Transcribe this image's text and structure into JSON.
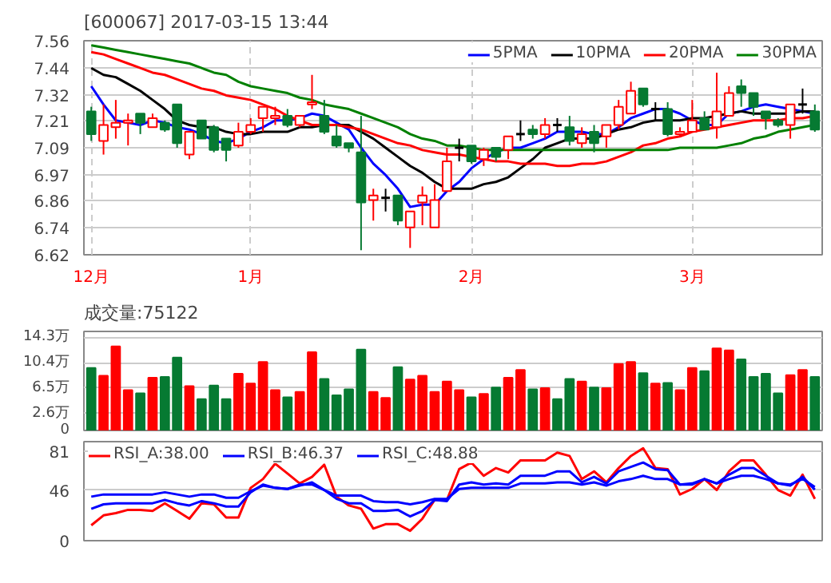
{
  "chart_data": [
    {
      "type": "candlestick",
      "title": "[600067] 2017-03-15 13:44",
      "categories": [
        "12月",
        null,
        null,
        null,
        null,
        null,
        null,
        null,
        null,
        null,
        null,
        null,
        null,
        "1月",
        null,
        null,
        null,
        null,
        null,
        null,
        null,
        null,
        null,
        null,
        null,
        null,
        null,
        null,
        null,
        null,
        null,
        "2月",
        null,
        null,
        null,
        null,
        null,
        null,
        null,
        null,
        null,
        null,
        null,
        null,
        null,
        null,
        null,
        null,
        null,
        "3月",
        null,
        null,
        null,
        null,
        null,
        null,
        null,
        null,
        null,
        null
      ],
      "ohlc": [
        [
          7.25,
          7.27,
          7.12,
          7.15
        ],
        [
          7.12,
          7.28,
          7.06,
          7.19
        ],
        [
          7.18,
          7.3,
          7.13,
          7.2
        ],
        [
          7.2,
          7.24,
          7.1,
          7.21
        ],
        [
          7.24,
          7.24,
          7.15,
          7.2
        ],
        [
          7.18,
          7.24,
          7.18,
          7.22
        ],
        [
          7.2,
          7.21,
          7.16,
          7.17
        ],
        [
          7.28,
          7.28,
          7.09,
          7.11
        ],
        [
          7.06,
          7.16,
          7.04,
          7.16
        ],
        [
          7.21,
          7.21,
          7.13,
          7.13
        ],
        [
          7.18,
          7.19,
          7.07,
          7.08
        ],
        [
          7.13,
          7.13,
          7.03,
          7.08
        ],
        [
          7.1,
          7.2,
          7.09,
          7.16
        ],
        [
          7.16,
          7.22,
          7.15,
          7.19
        ],
        [
          7.22,
          7.27,
          7.16,
          7.27
        ],
        [
          7.22,
          7.27,
          7.19,
          7.23
        ],
        [
          7.23,
          7.26,
          7.18,
          7.19
        ],
        [
          7.19,
          7.23,
          7.18,
          7.23
        ],
        [
          7.28,
          7.41,
          7.26,
          7.29
        ],
        [
          7.23,
          7.3,
          7.15,
          7.16
        ],
        [
          7.14,
          7.19,
          7.09,
          7.1
        ],
        [
          7.11,
          7.11,
          7.07,
          7.09
        ],
        [
          7.07,
          7.23,
          6.64,
          6.85
        ],
        [
          6.86,
          6.91,
          6.77,
          6.88
        ],
        [
          6.87,
          6.91,
          6.81,
          6.87
        ],
        [
          6.88,
          6.88,
          6.75,
          6.77
        ],
        [
          6.74,
          6.81,
          6.65,
          6.81
        ],
        [
          6.85,
          6.92,
          6.75,
          6.88
        ],
        [
          6.74,
          6.93,
          6.74,
          6.86
        ],
        [
          6.9,
          7.09,
          6.9,
          7.03
        ],
        [
          7.09,
          7.13,
          7.03,
          7.09
        ],
        [
          7.1,
          7.1,
          7.02,
          7.03
        ],
        [
          7.04,
          7.09,
          7.01,
          7.08
        ],
        [
          7.09,
          7.09,
          7.03,
          7.05
        ],
        [
          7.08,
          7.14,
          7.04,
          7.14
        ],
        [
          7.15,
          7.21,
          7.12,
          7.15
        ],
        [
          7.17,
          7.19,
          7.13,
          7.15
        ],
        [
          7.15,
          7.22,
          7.13,
          7.19
        ],
        [
          7.19,
          7.22,
          7.16,
          7.19
        ],
        [
          7.18,
          7.23,
          7.1,
          7.12
        ],
        [
          7.11,
          7.18,
          7.09,
          7.15
        ],
        [
          7.16,
          7.19,
          7.07,
          7.11
        ],
        [
          7.14,
          7.19,
          7.09,
          7.19
        ],
        [
          7.19,
          7.3,
          7.17,
          7.27
        ],
        [
          7.24,
          7.38,
          7.24,
          7.34
        ],
        [
          7.35,
          7.35,
          7.27,
          7.28
        ],
        [
          7.26,
          7.29,
          7.21,
          7.26
        ],
        [
          7.26,
          7.29,
          7.14,
          7.15
        ],
        [
          7.15,
          7.18,
          7.14,
          7.16
        ],
        [
          7.16,
          7.3,
          7.16,
          7.21
        ],
        [
          7.22,
          7.25,
          7.17,
          7.17
        ],
        [
          7.18,
          7.42,
          7.13,
          7.25
        ],
        [
          7.23,
          7.36,
          7.23,
          7.33
        ],
        [
          7.36,
          7.39,
          7.27,
          7.33
        ],
        [
          7.33,
          7.33,
          7.23,
          7.27
        ],
        [
          7.25,
          7.25,
          7.17,
          7.22
        ],
        [
          7.21,
          7.22,
          7.18,
          7.19
        ],
        [
          7.19,
          7.28,
          7.13,
          7.28
        ],
        [
          7.28,
          7.35,
          7.24,
          7.28
        ],
        [
          7.25,
          7.28,
          7.16,
          7.17
        ]
      ],
      "colors": [
        "#067a32",
        "#ff0000",
        "#ff0000",
        "#ff0000",
        "#067a32",
        "#ff0000",
        "#067a32",
        "#067a32",
        "#ff0000",
        "#067a32",
        "#067a32",
        "#067a32",
        "#ff0000",
        "#ff0000",
        "#ff0000",
        "#ff0000",
        "#067a32",
        "#ff0000",
        "#ff0000",
        "#067a32",
        "#067a32",
        "#067a32",
        "#067a32",
        "#ff0000",
        "#000000",
        "#067a32",
        "#ff0000",
        "#ff0000",
        "#ff0000",
        "#ff0000",
        "#000000",
        "#067a32",
        "#ff0000",
        "#067a32",
        "#ff0000",
        "#000000",
        "#067a32",
        "#ff0000",
        "#000000",
        "#067a32",
        "#ff0000",
        "#067a32",
        "#ff0000",
        "#ff0000",
        "#ff0000",
        "#067a32",
        "#000000",
        "#067a32",
        "#ff0000",
        "#ff0000",
        "#067a32",
        "#ff0000",
        "#ff0000",
        "#067a32",
        "#067a32",
        "#067a32",
        "#067a32",
        "#ff0000",
        "#000000",
        "#067a32"
      ],
      "series": [
        {
          "name": "5PMA",
          "type": "line",
          "color": "#0000ff",
          "values": [
            7.36,
            7.28,
            7.21,
            7.2,
            7.19,
            7.21,
            7.2,
            7.18,
            7.17,
            7.15,
            7.12,
            7.11,
            7.13,
            7.16,
            7.18,
            7.21,
            7.21,
            7.22,
            7.24,
            7.23,
            7.2,
            7.17,
            7.09,
            7.02,
            6.97,
            6.91,
            6.83,
            6.84,
            6.84,
            6.9,
            6.94,
            7.0,
            7.04,
            7.07,
            7.09,
            7.09,
            7.11,
            7.13,
            7.16,
            7.16,
            7.16,
            7.15,
            7.15,
            7.18,
            7.22,
            7.24,
            7.26,
            7.26,
            7.24,
            7.21,
            7.19,
            7.19,
            7.24,
            7.25,
            7.27,
            7.28,
            7.27,
            7.26,
            7.25,
            7.24
          ]
        },
        {
          "name": "10PMA",
          "type": "line",
          "color": "#000000",
          "values": [
            7.44,
            7.41,
            7.4,
            7.37,
            7.34,
            7.3,
            7.26,
            7.21,
            7.19,
            7.18,
            7.18,
            7.16,
            7.15,
            7.15,
            7.16,
            7.16,
            7.16,
            7.18,
            7.18,
            7.19,
            7.19,
            7.19,
            7.16,
            7.13,
            7.09,
            7.05,
            7.01,
            6.98,
            6.94,
            6.91,
            6.91,
            6.91,
            6.93,
            6.94,
            6.96,
            7.0,
            7.04,
            7.09,
            7.11,
            7.13,
            7.13,
            7.13,
            7.15,
            7.17,
            7.18,
            7.2,
            7.21,
            7.21,
            7.21,
            7.22,
            7.22,
            7.23,
            7.24,
            7.25,
            7.24,
            7.24,
            7.24,
            7.24,
            7.25,
            7.25
          ]
        },
        {
          "name": "20PMA",
          "type": "line",
          "color": "#ff0000",
          "values": [
            7.51,
            7.5,
            7.48,
            7.46,
            7.44,
            7.42,
            7.41,
            7.39,
            7.37,
            7.35,
            7.34,
            7.32,
            7.31,
            7.3,
            7.28,
            7.26,
            7.23,
            7.21,
            7.19,
            7.19,
            7.19,
            7.18,
            7.17,
            7.15,
            7.13,
            7.11,
            7.1,
            7.08,
            7.07,
            7.06,
            7.06,
            7.05,
            7.04,
            7.03,
            7.03,
            7.02,
            7.02,
            7.02,
            7.01,
            7.01,
            7.02,
            7.02,
            7.03,
            7.05,
            7.07,
            7.1,
            7.11,
            7.13,
            7.14,
            7.16,
            7.17,
            7.18,
            7.19,
            7.2,
            7.21,
            7.21,
            7.21,
            7.22,
            7.22,
            7.23
          ]
        },
        {
          "name": "30PMA",
          "type": "line",
          "color": "#008000",
          "values": [
            7.54,
            7.53,
            7.52,
            7.51,
            7.5,
            7.49,
            7.48,
            7.47,
            7.46,
            7.44,
            7.42,
            7.41,
            7.38,
            7.36,
            7.35,
            7.34,
            7.33,
            7.31,
            7.3,
            7.28,
            7.27,
            7.26,
            7.24,
            7.22,
            7.2,
            7.18,
            7.15,
            7.13,
            7.12,
            7.1,
            7.1,
            7.09,
            7.08,
            7.08,
            7.08,
            7.08,
            7.08,
            7.08,
            7.08,
            7.08,
            7.08,
            7.08,
            7.08,
            7.08,
            7.08,
            7.08,
            7.08,
            7.08,
            7.09,
            7.09,
            7.09,
            7.09,
            7.1,
            7.11,
            7.13,
            7.14,
            7.16,
            7.17,
            7.18,
            7.19
          ]
        }
      ],
      "ylim": [
        6.62,
        7.56
      ],
      "yticks": [
        6.62,
        6.74,
        6.86,
        6.97,
        7.09,
        7.21,
        7.32,
        7.44,
        7.56
      ],
      "grid": true,
      "legend": "top right"
    },
    {
      "type": "bar",
      "title": "成交量:75122",
      "categories": [
        null,
        null,
        null,
        null,
        null,
        null,
        null,
        null,
        null,
        null,
        null,
        null,
        null,
        null,
        null,
        null,
        null,
        null,
        null,
        null,
        null,
        null,
        null,
        null,
        null,
        null,
        null,
        null,
        null,
        null,
        null,
        null,
        null,
        null,
        null,
        null,
        null,
        null,
        null,
        null,
        null,
        null,
        null,
        null,
        null,
        null,
        null,
        null,
        null,
        null,
        null,
        null,
        null,
        null,
        null,
        null,
        null,
        null,
        null,
        null
      ],
      "values": [
        9.6,
        8.4,
        12.9,
        6.2,
        5.7,
        8.1,
        8.2,
        11.2,
        6.8,
        4.8,
        6.9,
        4.8,
        8.7,
        7.2,
        10.5,
        6.2,
        5.1,
        5.9,
        12.0,
        7.9,
        5.4,
        6.3,
        12.4,
        5.9,
        5.0,
        9.7,
        7.8,
        8.4,
        5.9,
        7.5,
        6.2,
        5.1,
        5.6,
        6.6,
        8.1,
        9.3,
        6.3,
        6.5,
        4.8,
        7.9,
        7.5,
        6.6,
        6.5,
        10.2,
        10.5,
        8.8,
        7.2,
        7.3,
        6.2,
        9.6,
        9.1,
        12.6,
        12.3,
        10.9,
        8.2,
        8.7,
        5.7,
        8.5,
        9.3,
        8.2
      ],
      "colors": [
        "#067a32",
        "#ff0000",
        "#ff0000",
        "#ff0000",
        "#067a32",
        "#ff0000",
        "#067a32",
        "#067a32",
        "#ff0000",
        "#067a32",
        "#067a32",
        "#067a32",
        "#ff0000",
        "#ff0000",
        "#ff0000",
        "#ff0000",
        "#067a32",
        "#ff0000",
        "#ff0000",
        "#067a32",
        "#067a32",
        "#067a32",
        "#067a32",
        "#ff0000",
        "#ff0000",
        "#067a32",
        "#ff0000",
        "#ff0000",
        "#ff0000",
        "#ff0000",
        "#ff0000",
        "#067a32",
        "#ff0000",
        "#067a32",
        "#ff0000",
        "#ff0000",
        "#067a32",
        "#ff0000",
        "#067a32",
        "#067a32",
        "#ff0000",
        "#067a32",
        "#ff0000",
        "#ff0000",
        "#ff0000",
        "#067a32",
        "#ff0000",
        "#067a32",
        "#ff0000",
        "#ff0000",
        "#067a32",
        "#ff0000",
        "#ff0000",
        "#067a32",
        "#067a32",
        "#067a32",
        "#067a32",
        "#ff0000",
        "#ff0000",
        "#067a32"
      ],
      "ylim": [
        0,
        15.2
      ],
      "yticks": [
        0,
        {
          "value": 2.6,
          "label": "2.6万"
        },
        {
          "value": 6.5,
          "label": "6.5万"
        },
        {
          "value": 10.4,
          "label": "10.4万"
        },
        {
          "value": 14.3,
          "label": "14.3万"
        }
      ],
      "grid": "y",
      "tick_labels": "y"
    },
    {
      "type": "line",
      "categories": [
        null,
        null,
        null,
        null,
        null,
        null,
        null,
        null,
        null,
        null,
        null,
        null,
        null,
        null,
        null,
        null,
        null,
        null,
        null,
        null,
        null,
        null,
        null,
        null,
        null,
        null,
        null,
        null,
        null,
        null,
        null,
        null,
        null,
        null,
        null,
        null,
        null,
        null,
        null,
        null,
        null,
        null,
        null,
        null,
        null,
        null,
        null,
        null,
        null,
        null,
        null,
        null,
        null,
        null,
        null,
        null,
        null,
        null,
        null,
        null
      ],
      "series": [
        {
          "name": "RSI_A:38.00",
          "color": "#ff0000",
          "values": [
            14,
            23,
            25,
            28,
            28,
            27,
            34,
            27,
            20,
            34,
            33,
            21,
            21,
            48,
            56,
            70,
            61,
            52,
            58,
            69,
            40,
            32,
            29,
            11,
            15,
            15,
            9,
            20,
            37,
            37,
            65,
            71,
            59,
            66,
            62,
            73,
            73,
            73,
            80,
            77,
            56,
            63,
            53,
            66,
            77,
            84,
            66,
            65,
            42,
            47,
            56,
            46,
            63,
            73,
            73,
            60,
            46,
            41,
            60,
            38
          ]
        },
        {
          "name": "RSI_B:46.37",
          "color": "#0000ff",
          "values": [
            29,
            33,
            34,
            34,
            34,
            34,
            37,
            34,
            32,
            36,
            34,
            31,
            31,
            44,
            51,
            48,
            47,
            50,
            53,
            46,
            38,
            34,
            34,
            27,
            27,
            28,
            22,
            27,
            37,
            36,
            51,
            53,
            51,
            52,
            51,
            59,
            59,
            59,
            63,
            63,
            53,
            58,
            52,
            63,
            67,
            71,
            65,
            64,
            51,
            52,
            56,
            52,
            60,
            66,
            66,
            59,
            52,
            50,
            58,
            46.37
          ]
        },
        {
          "name": "RSI_C:48.88",
          "color": "#0000ff",
          "values": [
            40,
            42,
            42,
            42,
            42,
            42,
            44,
            42,
            40,
            42,
            42,
            39,
            39,
            45,
            50,
            48,
            47,
            51,
            51,
            46,
            41,
            41,
            41,
            36,
            35,
            35,
            33,
            35,
            38,
            38,
            47,
            48,
            48,
            48,
            48,
            52,
            52,
            52,
            53,
            53,
            51,
            53,
            50,
            54,
            56,
            59,
            56,
            56,
            51,
            51,
            56,
            52,
            56,
            59,
            59,
            56,
            52,
            51,
            56,
            48.88
          ]
        }
      ],
      "ylim": [
        0,
        90
      ],
      "yticks": [
        0,
        46,
        81
      ],
      "grid": "y",
      "legend": "top left",
      "tick_labels": "y"
    }
  ]
}
